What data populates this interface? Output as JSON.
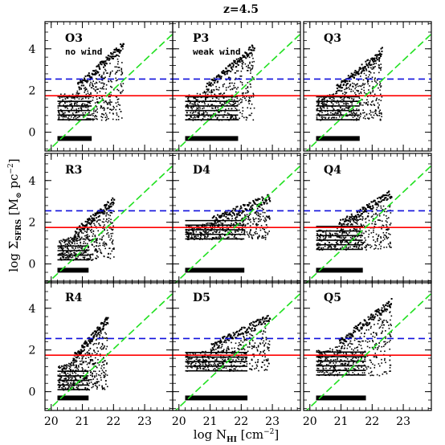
{
  "title": "z=4.5",
  "xlabel": {
    "prefix": "log N",
    "sub": "HI",
    "units_pre": " [cm",
    "units_sup": "−2",
    "units_post": "]"
  },
  "ylabel": {
    "prefix": "log Σ",
    "sub": "SFRS",
    "units_pre": " [M",
    "units_sym": "⊙",
    "units_mid": " pc",
    "units_sup": "−2",
    "units_post": "]"
  },
  "colors": {
    "axis": "#000000",
    "red_line": "#ff0000",
    "blue_dash": "#1010dd",
    "green_dash": "#20e020",
    "points": "#000000"
  },
  "chart_data": {
    "type": "scatter",
    "layout": "3x3 grid of panels with shared axes",
    "xlim": [
      19.8,
      23.9
    ],
    "ylim": [
      -0.9,
      5.3
    ],
    "xticks": [
      20,
      21,
      22,
      23
    ],
    "yticks": [
      0,
      2,
      4
    ],
    "reference_lines": {
      "red_solid_horizontal_y": 1.75,
      "blue_dashed_horizontal_y": 2.55,
      "green_dashed_fit": {
        "slope": 1.4,
        "intercept": -28.75,
        "x_range": [
          19.8,
          23.9
        ]
      }
    },
    "panels": [
      {
        "label": "O3",
        "note": "no wind",
        "xmin": 20.2,
        "xmax": 22.3,
        "ymin": 0.6,
        "ymax": 4.2,
        "floor_rows": 6,
        "floor_xmax": 21.3
      },
      {
        "label": "P3",
        "note": "weak wind",
        "xmin": 20.2,
        "xmax": 22.4,
        "ymin": 0.6,
        "ymax": 4.1,
        "floor_rows": 6,
        "floor_xmax": 21.9
      },
      {
        "label": "Q3",
        "note": "",
        "xmin": 20.2,
        "xmax": 22.3,
        "ymin": 0.6,
        "ymax": 3.9,
        "floor_rows": 6,
        "floor_xmax": 21.6
      },
      {
        "label": "R3",
        "note": "",
        "xmin": 20.2,
        "xmax": 22.0,
        "ymin": 0.2,
        "ymax": 3.1,
        "floor_rows": 4,
        "floor_xmax": 21.2
      },
      {
        "label": "D4",
        "note": "",
        "xmin": 20.2,
        "xmax": 22.9,
        "ymin": 1.2,
        "ymax": 3.2,
        "floor_rows": 5,
        "floor_xmax": 22.1
      },
      {
        "label": "Q4",
        "note": "",
        "xmin": 20.2,
        "xmax": 22.6,
        "ymin": 0.7,
        "ymax": 3.4,
        "floor_rows": 6,
        "floor_xmax": 21.7
      },
      {
        "label": "R4",
        "note": "",
        "xmin": 20.2,
        "xmax": 21.8,
        "ymin": 0.1,
        "ymax": 3.5,
        "floor_rows": 5,
        "floor_xmax": 21.2
      },
      {
        "label": "D5",
        "note": "",
        "xmin": 20.2,
        "xmax": 22.9,
        "ymin": 1.0,
        "ymax": 3.6,
        "floor_rows": 5,
        "floor_xmax": 22.2
      },
      {
        "label": "Q5",
        "note": "",
        "xmin": 20.2,
        "xmax": 22.6,
        "ymin": 0.8,
        "ymax": 4.3,
        "floor_rows": 6,
        "floor_xmax": 21.8
      }
    ],
    "floor_y": -0.3
  }
}
